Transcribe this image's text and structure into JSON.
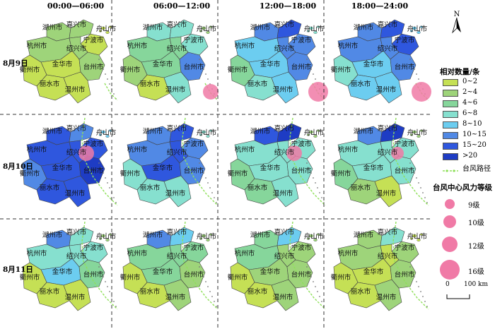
{
  "columns": [
    "00:00—06:00",
    "06:00—12:00",
    "12:00—18:00",
    "18:00—24:00"
  ],
  "rows": [
    "8月9日",
    "8月10日",
    "8月11日"
  ],
  "legend": {
    "title": "相对数量/条",
    "classes": [
      {
        "label": "0~2",
        "color": "#c5e055"
      },
      {
        "label": "2~4",
        "color": "#9ed47a"
      },
      {
        "label": "4~6",
        "color": "#86d69b"
      },
      {
        "label": "6~8",
        "color": "#86e0cf"
      },
      {
        "label": "8~10",
        "color": "#6ccdf0"
      },
      {
        "label": "10~15",
        "color": "#5189e5"
      },
      {
        "label": "15~20",
        "color": "#2f57de"
      },
      {
        "label": ">20",
        "color": "#1e3cc4"
      }
    ],
    "track_label": "台风路径",
    "track_color": "#8fe05a"
  },
  "wind": {
    "title": "台风中心风力等级",
    "items": [
      "9级",
      "10级",
      "12级",
      "16级"
    ],
    "color": "#f07aa6"
  },
  "north_label": "N",
  "scale_label": "0",
  "scale_units": "100 km",
  "city_labels": [
    "湖州市",
    "嘉兴市",
    "舟山市",
    "杭州市",
    "宁波市",
    "绍兴市",
    "金华市",
    "台州市",
    "衢州市",
    "丽水市",
    "温州市"
  ],
  "panels": [
    [
      {
        "湖州市": 1,
        "嘉兴市": 1,
        "舟山市": 0,
        "杭州市": 1,
        "宁波市": 0,
        "绍兴市": 1,
        "金华市": 0,
        "台州市": 1,
        "衢州市": 0,
        "丽水市": 0,
        "温州市": 0
      },
      {
        "湖州市": 3,
        "嘉兴市": 3,
        "舟山市": 1,
        "杭州市": 2,
        "宁波市": 3,
        "绍兴市": 2,
        "金华市": 2,
        "台州市": 5,
        "衢州市": 1,
        "丽水市": 0,
        "温州市": 3
      },
      {
        "湖州市": 5,
        "嘉兴市": 6,
        "舟山市": 3,
        "杭州市": 4,
        "宁波市": 5,
        "绍兴市": 5,
        "金华市": 4,
        "台州市": 5,
        "衢州市": 2,
        "丽水市": 3,
        "温州市": 4
      },
      {
        "湖州市": 5,
        "嘉兴市": 6,
        "舟山市": 4,
        "杭州市": 5,
        "宁波市": 6,
        "绍兴市": 5,
        "金华市": 4,
        "台州市": 5,
        "衢州市": 3,
        "丽水市": 4,
        "温州市": 4
      }
    ],
    [
      {
        "湖州市": 6,
        "嘉兴市": 5,
        "舟山市": 4,
        "杭州市": 6,
        "宁波市": 6,
        "绍兴市": 6,
        "金华市": 6,
        "台州市": 7,
        "衢州市": 5,
        "丽水市": 6,
        "温州市": 6
      },
      {
        "湖州市": 5,
        "嘉兴市": 6,
        "舟山市": 3,
        "杭州市": 5,
        "宁波市": 5,
        "绍兴市": 6,
        "金华市": 6,
        "台州市": 5,
        "衢州市": 3,
        "丽水市": 3,
        "温州市": 3
      },
      {
        "湖州市": 6,
        "嘉兴市": 7,
        "舟山市": 1,
        "杭州市": 3,
        "宁波市": 3,
        "绍兴市": 3,
        "金华市": 3,
        "台州市": 3,
        "衢州市": 2,
        "丽水市": 2,
        "温州市": 3
      },
      {
        "湖州市": 5,
        "嘉兴市": 7,
        "舟山市": 1,
        "杭州市": 3,
        "宁波市": 3,
        "绍兴市": 3,
        "金华市": 3,
        "台州市": 3,
        "衢州市": 2,
        "丽水市": 1,
        "温州市": 0
      }
    ],
    [
      {
        "湖州市": 5,
        "嘉兴市": 3,
        "舟山市": 1,
        "杭州市": 3,
        "宁波市": 3,
        "绍兴市": 3,
        "金华市": 4,
        "台州市": 2,
        "衢州市": 0,
        "丽水市": 0,
        "温州市": 0
      },
      {
        "湖州市": 5,
        "嘉兴市": 4,
        "舟山市": 1,
        "杭州市": 2,
        "宁波市": 2,
        "绍兴市": 2,
        "金华市": 2,
        "台州市": 1,
        "衢州市": 0,
        "丽水市": 0,
        "温州市": 1
      },
      {
        "湖州市": 2,
        "嘉兴市": 4,
        "舟山市": 1,
        "杭州市": 2,
        "宁波市": 1,
        "绍兴市": 1,
        "金华市": 1,
        "台州市": 1,
        "衢州市": 0,
        "丽水市": 0,
        "温州市": 1
      },
      {
        "湖州市": 1,
        "嘉兴市": 3,
        "舟山市": 0,
        "杭州市": 1,
        "宁波市": 1,
        "绍兴市": 0,
        "金华市": 0,
        "台州市": 1,
        "衢州市": 0,
        "丽水市": 0,
        "温州市": 1
      }
    ]
  ],
  "typhoon_centers": [
    [
      null,
      {
        "col": 1,
        "wind": "12级"
      },
      {
        "col": 2,
        "wind": "16级"
      },
      {
        "col": 3,
        "wind": "16级"
      }
    ],
    [
      {
        "col": 0,
        "wind": "12级"
      },
      null,
      {
        "col": 2,
        "wind": "12级"
      },
      {
        "col": 3,
        "wind": "10级"
      }
    ],
    [
      null,
      null,
      null,
      null
    ]
  ]
}
